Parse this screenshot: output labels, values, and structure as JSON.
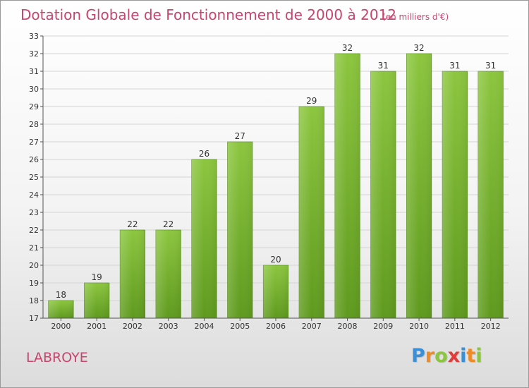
{
  "chart_data": {
    "type": "bar",
    "title": "Dotation Globale de Fonctionnement de 2000 à 2012",
    "subtitle": "(en milliers d'€)",
    "categories": [
      "2000",
      "2001",
      "2002",
      "2003",
      "2004",
      "2005",
      "2006",
      "2007",
      "2008",
      "2009",
      "2010",
      "2011",
      "2012"
    ],
    "values": [
      18,
      19,
      22,
      22,
      26,
      27,
      20,
      29,
      32,
      31,
      32,
      31,
      31
    ],
    "ylim": [
      17,
      33
    ],
    "yticks": [
      17,
      18,
      19,
      20,
      21,
      22,
      23,
      24,
      25,
      26,
      27,
      28,
      29,
      30,
      31,
      32,
      33
    ],
    "grid": true,
    "bar_color": "#8cc63f",
    "bar_color_dark": "#5f9a1e"
  },
  "commune": "LABROYE",
  "logo": {
    "letters": [
      "P",
      "r",
      "o",
      "x",
      "i",
      "t",
      "i"
    ],
    "colors": [
      "#3a8fd6",
      "#f08a24",
      "#8cc63f",
      "#e03b3b",
      "#3a8fd6",
      "#f08a24",
      "#8cc63f"
    ]
  },
  "colors": {
    "accent": "#c8456e",
    "grid": "#d4d4d4",
    "axis": "#555555"
  }
}
